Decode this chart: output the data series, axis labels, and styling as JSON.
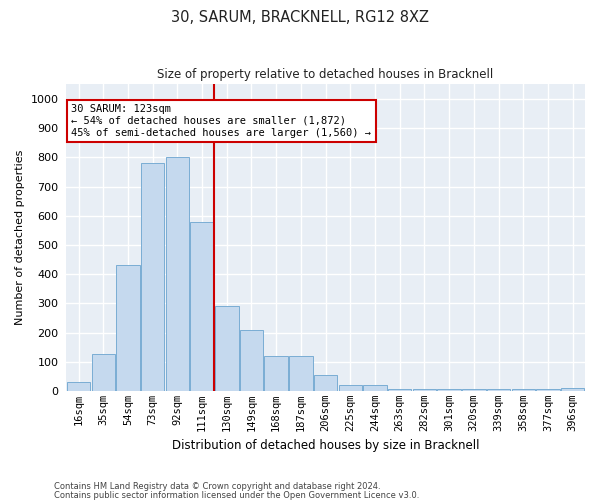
{
  "title1": "30, SARUM, BRACKNELL, RG12 8XZ",
  "title2": "Size of property relative to detached houses in Bracknell",
  "xlabel": "Distribution of detached houses by size in Bracknell",
  "ylabel": "Number of detached properties",
  "categories": [
    "16sqm",
    "35sqm",
    "54sqm",
    "73sqm",
    "92sqm",
    "111sqm",
    "130sqm",
    "149sqm",
    "168sqm",
    "187sqm",
    "206sqm",
    "225sqm",
    "244sqm",
    "263sqm",
    "282sqm",
    "301sqm",
    "320sqm",
    "339sqm",
    "358sqm",
    "377sqm",
    "396sqm"
  ],
  "values": [
    30,
    125,
    430,
    780,
    800,
    580,
    290,
    210,
    120,
    120,
    55,
    20,
    20,
    8,
    8,
    5,
    5,
    5,
    5,
    5,
    10
  ],
  "bar_facecolor": "#c5d9ee",
  "bar_edgecolor": "#7aadd4",
  "ylim": [
    0,
    1050
  ],
  "yticks": [
    0,
    100,
    200,
    300,
    400,
    500,
    600,
    700,
    800,
    900,
    1000
  ],
  "vline_color": "#cc0000",
  "annotation_text": "30 SARUM: 123sqm\n← 54% of detached houses are smaller (1,872)\n45% of semi-detached houses are larger (1,560) →",
  "annotation_box_facecolor": "#ffffff",
  "annotation_box_edgecolor": "#cc0000",
  "footer1": "Contains HM Land Registry data © Crown copyright and database right 2024.",
  "footer2": "Contains public sector information licensed under the Open Government Licence v3.0.",
  "bg_color": "#e8eef5",
  "grid_color": "#ffffff"
}
